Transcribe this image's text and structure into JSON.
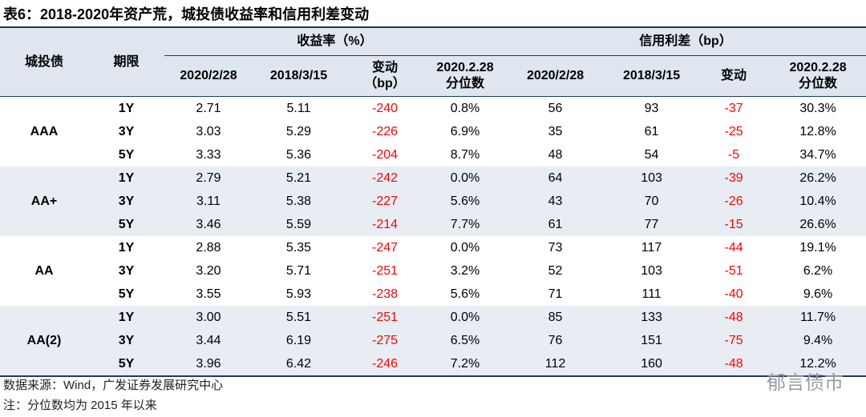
{
  "title": "表6：2018-2020年资产荒，城投债收益率和信用利差变动",
  "table": {
    "row_header": "城投债",
    "term_header": "期限",
    "groups": [
      "收益率（%）",
      "信用利差（bp）"
    ],
    "columns": [
      "2020/2/28",
      "2018/3/15",
      "变动\n（bp）",
      "2020.2.28\n分位数",
      "2020/2/28",
      "2018/3/15",
      "变动",
      "2020.2.28\n分位数"
    ],
    "ratings": [
      {
        "name": "AAA",
        "rows": [
          [
            "1Y",
            "2.71",
            "5.11",
            "-240",
            "0.8%",
            "56",
            "93",
            "-37",
            "30.3%"
          ],
          [
            "3Y",
            "3.03",
            "5.29",
            "-226",
            "6.9%",
            "35",
            "61",
            "-25",
            "12.8%"
          ],
          [
            "5Y",
            "3.33",
            "5.36",
            "-204",
            "8.7%",
            "48",
            "54",
            "-5",
            "34.7%"
          ]
        ]
      },
      {
        "name": "AA+",
        "rows": [
          [
            "1Y",
            "2.79",
            "5.21",
            "-242",
            "0.0%",
            "64",
            "103",
            "-39",
            "26.2%"
          ],
          [
            "3Y",
            "3.11",
            "5.38",
            "-227",
            "5.6%",
            "43",
            "70",
            "-26",
            "10.4%"
          ],
          [
            "5Y",
            "3.46",
            "5.59",
            "-214",
            "7.7%",
            "61",
            "77",
            "-15",
            "26.6%"
          ]
        ]
      },
      {
        "name": "AA",
        "rows": [
          [
            "1Y",
            "2.88",
            "5.35",
            "-247",
            "0.0%",
            "73",
            "117",
            "-44",
            "19.1%"
          ],
          [
            "3Y",
            "3.20",
            "5.71",
            "-251",
            "3.2%",
            "52",
            "103",
            "-51",
            "6.2%"
          ],
          [
            "5Y",
            "3.55",
            "5.93",
            "-238",
            "5.6%",
            "71",
            "111",
            "-40",
            "9.6%"
          ]
        ]
      },
      {
        "name": "AA(2)",
        "rows": [
          [
            "1Y",
            "3.00",
            "5.51",
            "-251",
            "0.0%",
            "85",
            "133",
            "-48",
            "11.7%"
          ],
          [
            "3Y",
            "3.44",
            "6.19",
            "-275",
            "6.5%",
            "76",
            "151",
            "-75",
            "9.4%"
          ],
          [
            "5Y",
            "3.96",
            "6.42",
            "-246",
            "7.2%",
            "112",
            "160",
            "-48",
            "12.2%"
          ]
        ]
      }
    ]
  },
  "notes": [
    "数据来源：Wind，广发证券发展研究中心",
    "注：分位数均为 2015 年以来"
  ],
  "watermark": "郁言债市"
}
